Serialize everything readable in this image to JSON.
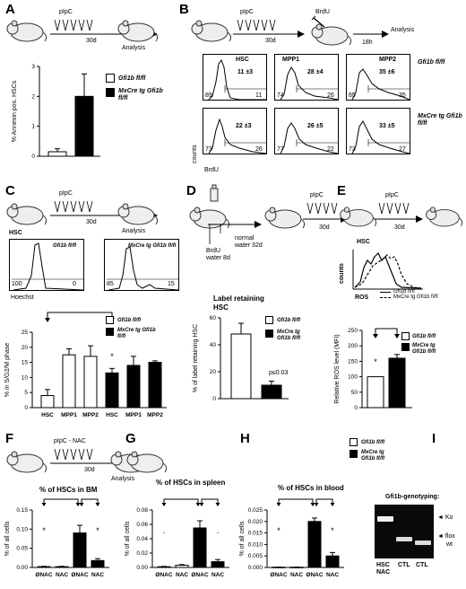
{
  "panels": {
    "A": {
      "letter": "A",
      "treatment": "pIpC",
      "duration": "30d",
      "endpoint": "Analysis",
      "legend": [
        "Gfi1b fl/fl",
        "MxCre tg Gfi1b fl/fl"
      ],
      "ylabel": "% Annexin pos. HSCs"
    },
    "B": {
      "letter": "B",
      "treatment": "pIpC",
      "brdu": "BrdU",
      "duration": "30d",
      "analysis": "Analysis",
      "analysis_time": "18h",
      "columns": [
        "HSC",
        "MPP1",
        "MPP2"
      ],
      "row_labels": [
        "Gfi1b fl/fl",
        "MxCre tg Gfi1b fl/fl"
      ],
      "ylabel": "counts",
      "xlabel": "BrdU",
      "row1": [
        {
          "mean": "11 ±3",
          "left": "89",
          "right": "11"
        },
        {
          "mean": "28 ±4",
          "left": "74",
          "right": "26"
        },
        {
          "mean": "35 ±6",
          "left": "65",
          "right": "35"
        }
      ],
      "row2": [
        {
          "mean": "22 ±3",
          "left": "73",
          "right": "26"
        },
        {
          "mean": "26 ±5",
          "left": "77",
          "right": "22"
        },
        {
          "mean": "33 ±5",
          "left": "73",
          "right": "27"
        }
      ]
    },
    "C": {
      "letter": "C",
      "treatment": "pIpC",
      "duration": "30d",
      "endpoint": "Analysis",
      "hist_titles": [
        "HSC",
        "Gfi1b fl/fl",
        "MxCre tg Gfi1b fl/fl"
      ],
      "hist1": {
        "left": "100",
        "right": "0"
      },
      "hist2": {
        "left": "85",
        "right": "15"
      },
      "xlabel_hist": "Hoechst",
      "legend": [
        "Gfi1b fl/fl",
        "MxCre tg Gfi1b fl/fl"
      ],
      "ylabel": "% in S/G2/M phase",
      "star": "*"
    },
    "D": {
      "letter": "D",
      "water1": "BrdU water 8d",
      "water2": "normal water 32d",
      "treatment": "pIpC",
      "duration": "30d",
      "chart_title": "Label retaining HSC",
      "legend": [
        "Gfi1b fl/fl",
        "MxCre tg Gfi1b fl/fl"
      ],
      "ylabel": "% of label retaining HSC",
      "pvalue": "p≤0.03"
    },
    "E": {
      "letter": "E",
      "treatment": "pIpC",
      "duration": "30d",
      "hist_title": "HSC",
      "ylabel_hist": "counts",
      "xlabel_hist": "ROS",
      "hist_legend": [
        "Gfi1b fl/fl",
        "MxCre tg Gfi1b fl/fl"
      ],
      "legend": [
        "Gfi1b fl/fl",
        "MxCre tg Gfi1b fl/fl"
      ],
      "ylabel": "Relative ROS level (MFI)",
      "star": "*"
    },
    "F": {
      "letter": "F",
      "treatment": "pIpC - NAC",
      "duration": "30d",
      "endpoint": "Analysis",
      "chart_title": "% of HSCs in  BM",
      "ylabel": "% of all cells",
      "categories": [
        "ØNAC",
        "NAC",
        "ØNAC",
        "NAC"
      ],
      "stars": [
        "*",
        "*"
      ]
    },
    "G": {
      "letter": "G",
      "chart_title": "% of HSCs in spleen",
      "ylabel": "% of all cells",
      "categories": [
        "ØNAC",
        "NAC",
        "ØNAC",
        "NAC"
      ],
      "stars": [
        ".",
        "."
      ]
    },
    "H": {
      "letter": "H",
      "chart_title": "% of HSCs in blood",
      "ylabel": "% of all cells",
      "categories": [
        "ØNAC",
        "NAC",
        "ØNAC",
        "NAC"
      ],
      "legend": [
        "Gfi1b fl/fl",
        "MxCre tg Gfi1b fl/fl"
      ],
      "stars": [
        "*",
        "*"
      ]
    },
    "I": {
      "letter": "I",
      "title": "Gfi1b-genotyping:",
      "bands": [
        "Ko",
        "flox",
        "wt"
      ],
      "lanes": [
        "HSC NAC",
        "CTL",
        "CTL"
      ]
    }
  },
  "chart_data": [
    {
      "id": "A",
      "type": "bar",
      "categories": [
        "Gfi1b fl/fl",
        "MxCre tg Gfi1b fl/fl"
      ],
      "values": [
        0.15,
        2.0
      ],
      "errors": [
        0.1,
        0.75
      ],
      "ylabel": "% Annexin pos. HSCs",
      "ylim": [
        0,
        3
      ],
      "yticks": [
        "0",
        "1",
        "2",
        "3"
      ]
    },
    {
      "id": "C",
      "type": "bar",
      "categories": [
        "HSC",
        "MPP1",
        "MPP2",
        "HSC",
        "MPP1",
        "MPP2"
      ],
      "values": [
        4,
        17.5,
        17,
        11.5,
        14,
        15
      ],
      "errors": [
        2,
        2,
        3.5,
        1.5,
        3,
        0.5
      ],
      "fills": [
        "#ffffff",
        "#ffffff",
        "#ffffff",
        "#000000",
        "#000000",
        "#000000"
      ],
      "ylabel": "% in S/G2/M phase",
      "ylim": [
        0,
        25
      ],
      "yticks": [
        "0",
        "5",
        "10",
        "15",
        "20",
        "25"
      ]
    },
    {
      "id": "D",
      "type": "bar",
      "categories": [
        "Gfi1b fl/fl",
        "MxCre tg Gfi1b fl/fl"
      ],
      "values": [
        48,
        10
      ],
      "errors": [
        8,
        3
      ],
      "ylabel": "% of label retaining HSC",
      "ylim": [
        0,
        60
      ],
      "yticks": [
        "0",
        "20",
        "40",
        "60"
      ]
    },
    {
      "id": "E",
      "type": "bar",
      "categories": [
        "Gfi1b fl/fl",
        "MxCre tg Gfi1b fl/fl"
      ],
      "values": [
        100,
        160
      ],
      "errors": [
        0,
        12
      ],
      "ylabel": "Relative ROS level (MFI)",
      "ylim": [
        0,
        250
      ],
      "yticks": [
        "0",
        "50",
        "100",
        "150",
        "200",
        "250"
      ]
    },
    {
      "id": "F",
      "type": "bar",
      "categories": [
        "ØNAC",
        "NAC",
        "ØNAC",
        "NAC"
      ],
      "values": [
        0.002,
        0.002,
        0.09,
        0.018
      ],
      "errors": [
        0.001,
        0.001,
        0.02,
        0.005
      ],
      "fills": [
        "#ffffff",
        "#ffffff",
        "#000000",
        "#000000"
      ],
      "ylim": [
        0,
        0.15
      ],
      "yticks": [
        "0.00",
        "0.05",
        "0.10",
        "0.15"
      ]
    },
    {
      "id": "G",
      "type": "bar",
      "categories": [
        "ØNAC",
        "NAC",
        "ØNAC",
        "NAC"
      ],
      "values": [
        0.001,
        0.003,
        0.055,
        0.008
      ],
      "errors": [
        0.0005,
        0.001,
        0.01,
        0.003
      ],
      "fills": [
        "#ffffff",
        "#ffffff",
        "#000000",
        "#000000"
      ],
      "ylim": [
        0,
        0.08
      ],
      "yticks": [
        "0.00",
        "0.02",
        "0.04",
        "0.06",
        "0.08"
      ]
    },
    {
      "id": "H",
      "type": "bar",
      "categories": [
        "ØNAC",
        "NAC",
        "ØNAC",
        "NAC"
      ],
      "values": [
        0.0001,
        0.0001,
        0.02,
        0.005
      ],
      "errors": [
        5e-05,
        5e-05,
        0.0015,
        0.0015
      ],
      "fills": [
        "#ffffff",
        "#ffffff",
        "#000000",
        "#000000"
      ],
      "ylim": [
        0,
        0.025
      ],
      "yticks": [
        "0.000",
        "0.005",
        "0.010",
        "0.015",
        "0.020",
        "0.025"
      ]
    }
  ]
}
